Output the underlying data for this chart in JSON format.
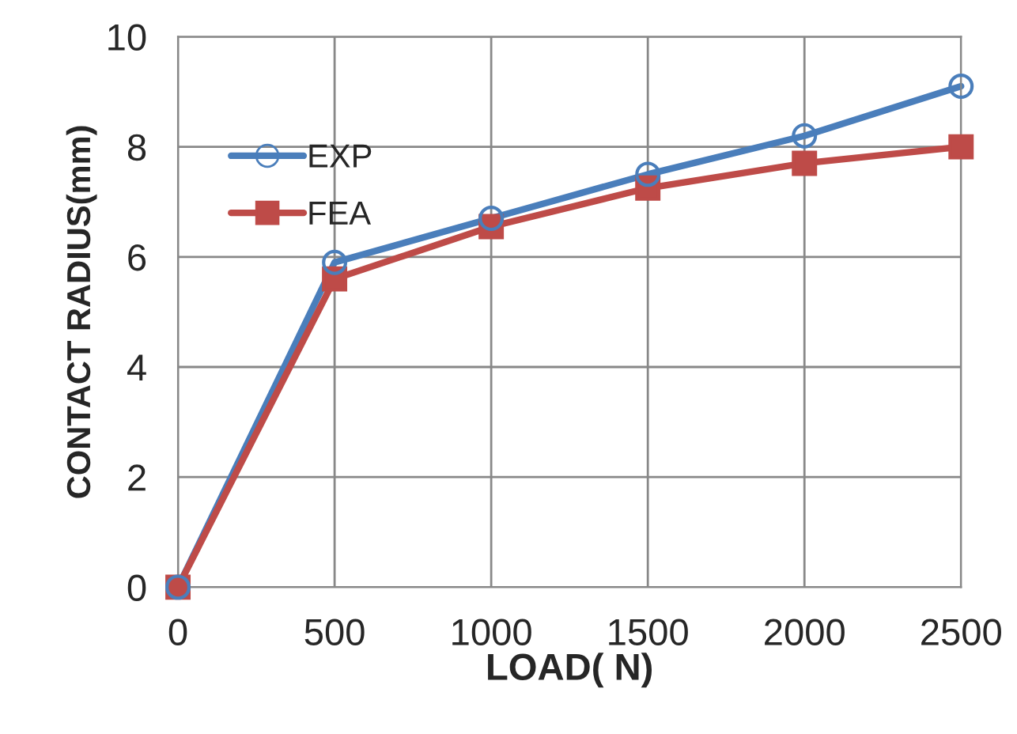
{
  "chart_data": {
    "type": "line",
    "xlabel": "LOAD( N)",
    "ylabel": "CONTACT RADIUS(mm)",
    "x": [
      0,
      500,
      1000,
      1500,
      2000,
      2500
    ],
    "series": [
      {
        "name": "EXP",
        "color": "#4a7ebb",
        "marker": "circle",
        "values": [
          0,
          5.9,
          6.7,
          7.5,
          8.2,
          9.1
        ]
      },
      {
        "name": "FEA",
        "color": "#be4b48",
        "marker": "square",
        "values": [
          0,
          5.6,
          6.55,
          7.25,
          7.7,
          8.0
        ]
      }
    ],
    "xlim": [
      0,
      2500
    ],
    "xticks": [
      0,
      500,
      1000,
      1500,
      2000,
      2500
    ],
    "ylim": [
      0,
      10
    ],
    "yticks": [
      0,
      2,
      4,
      6,
      8,
      10
    ],
    "grid": true,
    "legend": "upper left",
    "line_style": "solid"
  }
}
